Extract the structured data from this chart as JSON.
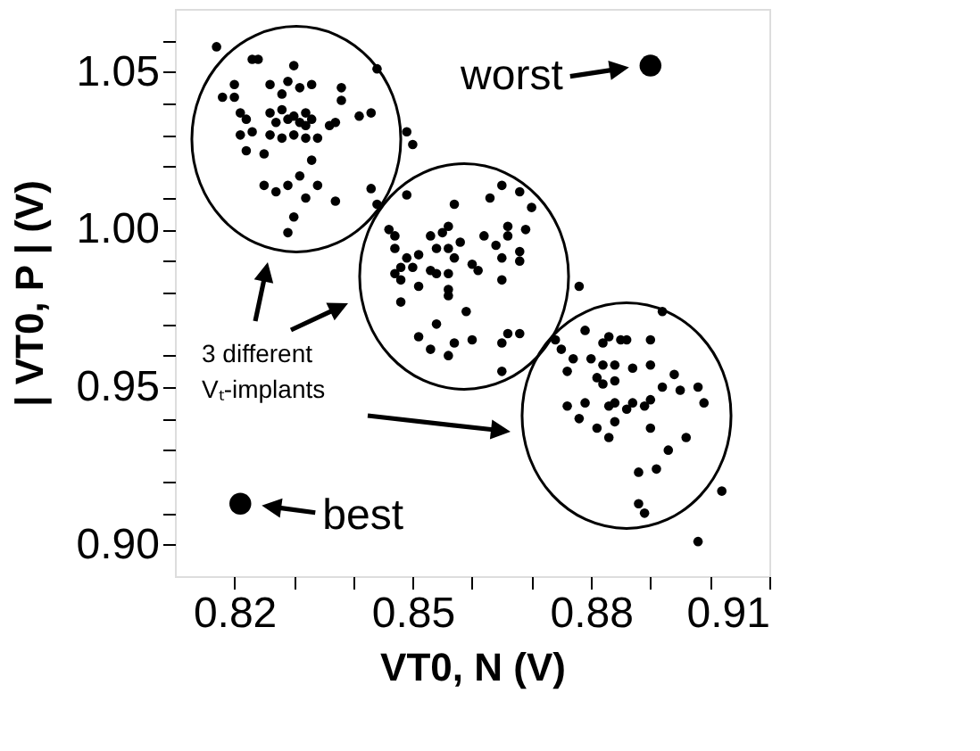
{
  "chart_data": {
    "type": "scatter",
    "xlabel": "VT0, N (V)",
    "ylabel": "| VT0, P | (V)",
    "xlim": [
      0.81,
      0.91
    ],
    "ylim": [
      0.89,
      1.07
    ],
    "xticks": [
      0.82,
      {
        "value": 0.83,
        "label": null
      },
      {
        "value": 0.84,
        "label": null
      },
      0.85,
      {
        "value": 0.86,
        "label": null
      },
      {
        "value": 0.87,
        "label": null
      },
      0.88,
      {
        "value": 0.89,
        "label": null
      },
      {
        "value": 0.9,
        "label": null
      },
      0.91
    ],
    "yticks": [
      {
        "value": 0.9,
        "label": "0.90"
      },
      {
        "value": 0.91,
        "label": null
      },
      {
        "value": 0.92,
        "label": null
      },
      {
        "value": 0.93,
        "label": null
      },
      {
        "value": 0.94,
        "label": null
      },
      0.95,
      {
        "value": 0.96,
        "label": null
      },
      {
        "value": 0.97,
        "label": null
      },
      {
        "value": 0.98,
        "label": null
      },
      {
        "value": 0.99,
        "label": null
      },
      {
        "value": 1.0,
        "label": "1.00"
      },
      {
        "value": 1.01,
        "label": null
      },
      {
        "value": 1.02,
        "label": null
      },
      {
        "value": 1.03,
        "label": null
      },
      {
        "value": 1.04,
        "label": null
      },
      1.05,
      {
        "value": 1.06,
        "label": null
      }
    ],
    "grid": false,
    "marker": "circle",
    "series": [
      {
        "color": "#000000",
        "x": [
          0.817,
          0.823,
          0.824,
          0.83,
          0.844,
          0.82,
          0.826,
          0.829,
          0.833,
          0.831,
          0.838,
          0.818,
          0.82,
          0.828,
          0.838,
          0.821,
          0.822,
          0.826,
          0.828,
          0.83,
          0.832,
          0.833,
          0.841,
          0.843,
          0.827,
          0.829,
          0.831,
          0.832,
          0.836,
          0.837,
          0.821,
          0.823,
          0.826,
          0.828,
          0.83,
          0.832,
          0.834,
          0.849,
          0.822,
          0.825,
          0.833,
          0.85,
          0.825,
          0.827,
          0.829,
          0.831,
          0.834,
          0.843,
          0.832,
          0.837,
          0.844,
          0.83,
          0.829,
          0.849,
          0.857,
          0.863,
          0.865,
          0.868,
          0.87,
          0.846,
          0.847,
          0.853,
          0.855,
          0.856,
          0.858,
          0.862,
          0.866,
          0.869,
          0.847,
          0.849,
          0.851,
          0.854,
          0.856,
          0.857,
          0.864,
          0.866,
          0.865,
          0.868,
          0.847,
          0.848,
          0.85,
          0.853,
          0.854,
          0.856,
          0.86,
          0.861,
          0.868,
          0.848,
          0.865,
          0.851,
          0.856,
          0.856,
          0.848,
          0.859,
          0.854,
          0.851,
          0.853,
          0.857,
          0.86,
          0.856,
          0.865,
          0.866,
          0.868,
          0.865,
          0.878,
          0.874,
          0.875,
          0.877,
          0.876,
          0.879,
          0.88,
          0.882,
          0.883,
          0.885,
          0.886,
          0.89,
          0.892,
          0.881,
          0.882,
          0.884,
          0.882,
          0.884,
          0.887,
          0.89,
          0.892,
          0.894,
          0.895,
          0.898,
          0.876,
          0.879,
          0.883,
          0.884,
          0.886,
          0.887,
          0.889,
          0.89,
          0.899,
          0.878,
          0.881,
          0.884,
          0.89,
          0.883,
          0.896,
          0.893,
          0.888,
          0.891,
          0.888,
          0.889,
          0.902,
          0.898
        ],
        "values": [
          1.058,
          1.054,
          1.054,
          1.052,
          1.051,
          1.046,
          1.046,
          1.047,
          1.046,
          1.045,
          1.045,
          1.042,
          1.042,
          1.043,
          1.041,
          1.037,
          1.035,
          1.037,
          1.038,
          1.036,
          1.037,
          1.035,
          1.036,
          1.037,
          1.034,
          1.035,
          1.034,
          1.033,
          1.033,
          1.034,
          1.03,
          1.031,
          1.03,
          1.029,
          1.03,
          1.029,
          1.029,
          1.031,
          1.025,
          1.024,
          1.022,
          1.027,
          1.014,
          1.012,
          1.014,
          1.017,
          1.014,
          1.013,
          1.01,
          1.009,
          1.008,
          1.004,
          0.999,
          1.011,
          1.008,
          1.01,
          1.014,
          1.012,
          1.007,
          1.0,
          0.998,
          0.998,
          0.999,
          1.001,
          0.996,
          0.998,
          1.001,
          1.0,
          0.994,
          0.991,
          0.992,
          0.994,
          0.994,
          0.991,
          0.995,
          0.998,
          0.991,
          0.993,
          0.986,
          0.988,
          0.988,
          0.987,
          0.986,
          0.986,
          0.989,
          0.987,
          0.99,
          0.984,
          0.984,
          0.982,
          0.981,
          0.979,
          0.977,
          0.974,
          0.97,
          0.966,
          0.962,
          0.964,
          0.965,
          0.96,
          0.964,
          0.967,
          0.967,
          0.955,
          0.982,
          0.965,
          0.962,
          0.959,
          0.955,
          0.968,
          0.959,
          0.964,
          0.966,
          0.965,
          0.965,
          0.965,
          0.974,
          0.953,
          0.951,
          0.952,
          0.957,
          0.957,
          0.956,
          0.957,
          0.95,
          0.954,
          0.949,
          0.95,
          0.944,
          0.945,
          0.944,
          0.945,
          0.943,
          0.945,
          0.944,
          0.946,
          0.945,
          0.94,
          0.937,
          0.939,
          0.937,
          0.934,
          0.934,
          0.93,
          0.923,
          0.924,
          0.913,
          0.91,
          0.917,
          0.901
        ]
      },
      {
        "color": "#000000",
        "x": [
          0.821,
          0.89
        ],
        "values": [
          0.913,
          1.052
        ]
      }
    ],
    "annotations": [
      {
        "text": "worst",
        "x": 0.89,
        "y": 1.052
      },
      {
        "text": "best",
        "x": 0.821,
        "y": 0.913
      },
      "3 different\nVₜ-implants"
    ]
  }
}
